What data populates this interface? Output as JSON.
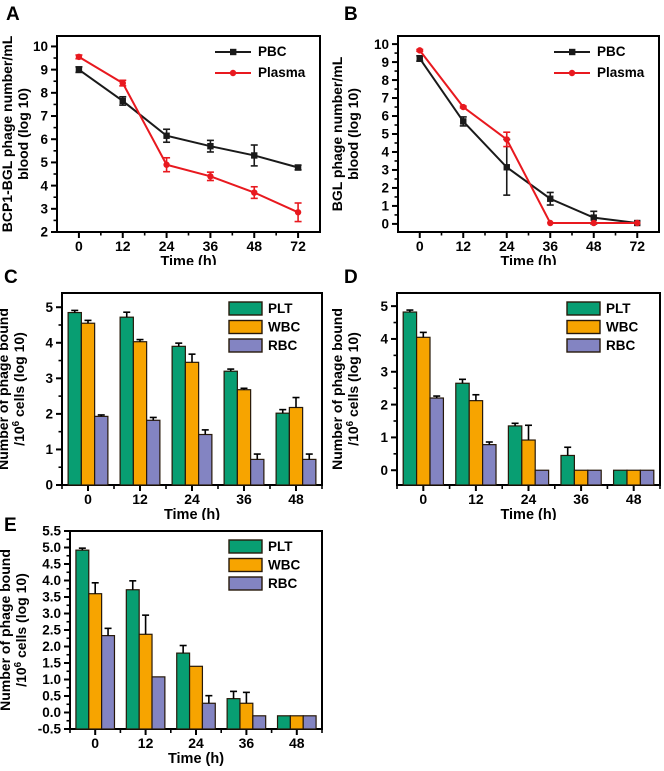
{
  "figure": {
    "background": "#ffffff",
    "panel_letters": [
      "A",
      "B",
      "C",
      "D",
      "E"
    ]
  },
  "colors": {
    "axis": "#000000",
    "pbc_line": "#1A1A1A",
    "plasma_line": "#E8191F",
    "plt_bar": "#089E72",
    "wbc_bar": "#F7A400",
    "rbc_bar": "#8384C2",
    "bar_border": "#27190A"
  },
  "chart_data": [
    {
      "panel": "A",
      "type": "line",
      "x": [
        "0",
        "12",
        "24",
        "36",
        "48",
        "72"
      ],
      "xlabel": "Time (h)",
      "ylabel_lines": [
        "BCP1-BGL phage number/mL",
        "blood (log 10)"
      ],
      "ylim": [
        2,
        10.45
      ],
      "yticks": [
        2,
        3,
        4,
        5,
        6,
        7,
        8,
        9,
        10
      ],
      "grid": false,
      "legend_position": "top-right",
      "series": [
        {
          "name": "PBC",
          "color": "#1A1A1A",
          "marker": "square",
          "values": [
            9.0,
            7.65,
            6.15,
            5.7,
            5.3,
            4.78
          ],
          "errors": [
            0.12,
            0.18,
            0.28,
            0.25,
            0.45,
            0.1
          ]
        },
        {
          "name": "Plasma",
          "color": "#E8191F",
          "marker": "circle",
          "values": [
            9.55,
            8.42,
            4.9,
            4.4,
            3.7,
            2.85
          ],
          "errors": [
            0.08,
            0.12,
            0.3,
            0.18,
            0.25,
            0.4
          ]
        }
      ]
    },
    {
      "panel": "B",
      "type": "line",
      "x": [
        "0",
        "12",
        "24",
        "36",
        "48",
        "72"
      ],
      "xlabel": "Time (h)",
      "ylabel_lines": [
        "BGL phage number/mL",
        "blood (log 10)"
      ],
      "ylim": [
        -0.45,
        10.45
      ],
      "yticks": [
        0,
        1,
        2,
        3,
        4,
        5,
        6,
        7,
        8,
        9,
        10
      ],
      "grid": false,
      "legend_position": "top-right",
      "series": [
        {
          "name": "PBC",
          "color": "#1A1A1A",
          "marker": "square",
          "values": [
            9.2,
            5.7,
            3.15,
            1.4,
            0.35,
            0.05
          ],
          "errors": [
            0.15,
            0.25,
            1.55,
            0.35,
            0.35,
            0
          ]
        },
        {
          "name": "Plasma",
          "color": "#E8191F",
          "marker": "circle",
          "values": [
            9.65,
            6.5,
            4.7,
            0.05,
            0.05,
            0.05
          ],
          "errors": [
            0.05,
            0.05,
            0.4,
            0,
            0,
            0
          ]
        }
      ]
    },
    {
      "panel": "C",
      "type": "bar",
      "categories": [
        "0",
        "12",
        "24",
        "36",
        "48"
      ],
      "xlabel": "Time (h)",
      "ylabel_lines": [
        "Number of phage bound",
        "/10^6 cells (log 10)"
      ],
      "ylim": [
        0,
        5.4
      ],
      "yticks": [
        0,
        1,
        2,
        3,
        4,
        5
      ],
      "ytick_decimals": 0,
      "grid": false,
      "legend_position": "top-right",
      "series": [
        {
          "name": "PLT",
          "color": "#089E72",
          "values": [
            4.85,
            4.72,
            3.9,
            3.2,
            2.02
          ],
          "errors": [
            0.06,
            0.14,
            0.09,
            0.06,
            0.1
          ]
        },
        {
          "name": "WBC",
          "color": "#F7A400",
          "values": [
            4.55,
            4.03,
            3.45,
            2.68,
            2.18
          ],
          "errors": [
            0.08,
            0.06,
            0.23,
            0.04,
            0.28
          ]
        },
        {
          "name": "RBC",
          "color": "#8384C2",
          "values": [
            1.93,
            1.82,
            1.42,
            0.72,
            0.72
          ],
          "errors": [
            0.04,
            0.08,
            0.13,
            0.15,
            0.15
          ]
        }
      ]
    },
    {
      "panel": "D",
      "type": "bar",
      "categories": [
        "0",
        "12",
        "24",
        "36",
        "48"
      ],
      "xlabel": "Time (h)",
      "ylabel_lines": [
        "Number of phage bound",
        "/10^6 cells (log 10)"
      ],
      "ylim": [
        -0.45,
        5.4
      ],
      "yticks": [
        0,
        1,
        2,
        3,
        4,
        5
      ],
      "ytick_decimals": 0,
      "grid": false,
      "legend_position": "top-right",
      "series": [
        {
          "name": "PLT",
          "color": "#089E72",
          "values": [
            4.82,
            2.65,
            1.35,
            0.45,
            0.0
          ],
          "errors": [
            0.06,
            0.12,
            0.08,
            0.25,
            0
          ]
        },
        {
          "name": "WBC",
          "color": "#F7A400",
          "values": [
            4.05,
            2.12,
            0.92,
            0.0,
            0.0
          ],
          "errors": [
            0.15,
            0.18,
            0.45,
            0,
            0
          ]
        },
        {
          "name": "RBC",
          "color": "#8384C2",
          "values": [
            2.2,
            0.78,
            0.0,
            0.0,
            0.0
          ],
          "errors": [
            0.06,
            0.08,
            0,
            0,
            0
          ]
        }
      ]
    },
    {
      "panel": "E",
      "type": "bar",
      "categories": [
        "0",
        "12",
        "24",
        "36",
        "48"
      ],
      "xlabel": "Time (h)",
      "ylabel_lines": [
        "Number of phage bound",
        "/10^6 cells (log 10)"
      ],
      "ylim": [
        -0.5,
        5.5
      ],
      "yticks": [
        -0.5,
        0,
        0.5,
        1,
        1.5,
        2,
        2.5,
        3,
        3.5,
        4,
        4.5,
        5,
        5.5
      ],
      "ytick_decimals": 1,
      "grid": false,
      "legend_position": "top-right",
      "series": [
        {
          "name": "PLT",
          "color": "#089E72",
          "values": [
            4.92,
            3.72,
            1.8,
            0.42,
            -0.1
          ],
          "errors": [
            0.06,
            0.27,
            0.23,
            0.22,
            0
          ]
        },
        {
          "name": "WBC",
          "color": "#F7A400",
          "values": [
            3.6,
            2.37,
            1.4,
            0.28,
            -0.1
          ],
          "errors": [
            0.33,
            0.58,
            0,
            0.33,
            0
          ]
        },
        {
          "name": "RBC",
          "color": "#8384C2",
          "values": [
            2.33,
            1.08,
            0.28,
            -0.1,
            -0.1
          ],
          "errors": [
            0.22,
            0,
            0.23,
            0,
            0
          ]
        }
      ]
    }
  ]
}
